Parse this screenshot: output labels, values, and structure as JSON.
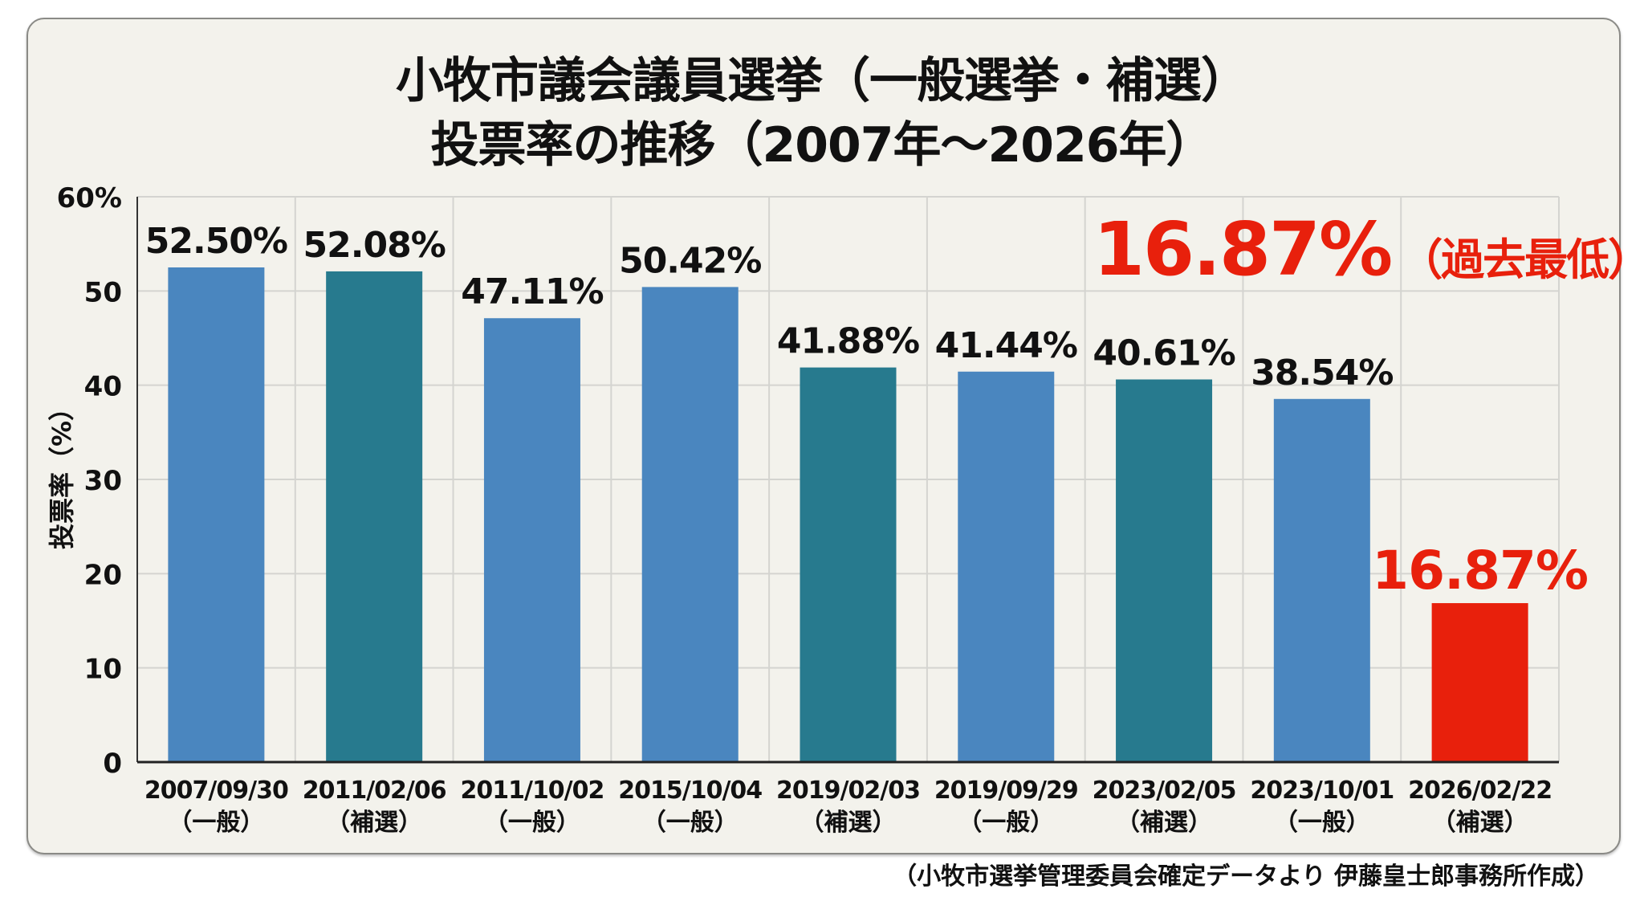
{
  "chart_data": {
    "type": "bar",
    "title_line1": "小牧市議会議員選挙（一般選挙・補選）",
    "title_line2": "投票率の推移（2007年〜2026年）",
    "ylabel": "投票率（%）",
    "xlabel": "",
    "ylim": [
      0,
      60
    ],
    "yticks": [
      "0",
      "10",
      "20",
      "30",
      "40",
      "50",
      "60%"
    ],
    "grid": true,
    "categories": [
      {
        "date": "2007/09/30",
        "type": "（一般）"
      },
      {
        "date": "2011/02/06",
        "type": "（補選）"
      },
      {
        "date": "2011/10/02",
        "type": "（一般）"
      },
      {
        "date": "2015/10/04",
        "type": "（一般）"
      },
      {
        "date": "2019/02/03",
        "type": "（補選）"
      },
      {
        "date": "2019/09/29",
        "type": "（一般）"
      },
      {
        "date": "2023/02/05",
        "type": "（補選）"
      },
      {
        "date": "2023/10/01",
        "type": "（一般）"
      },
      {
        "date": "2026/02/22",
        "type": "（補選）"
      }
    ],
    "values": [
      52.5,
      52.08,
      47.11,
      50.42,
      41.88,
      41.44,
      40.61,
      38.54,
      16.87
    ],
    "labels": [
      "52.50%",
      "52.08%",
      "47.11%",
      "50.42%",
      "41.88%",
      "41.44%",
      "40.61%",
      "38.54%",
      "16.87%"
    ],
    "annotation": {
      "value": "16.87%",
      "note": "（過去最低）"
    }
  },
  "colors": {
    "general": "#4a86bf",
    "by_election": "#277a8e",
    "latest": "#e8200c",
    "text": "#111111"
  },
  "source": "（小牧市選挙管理委員会確定データより 伊藤皇士郎事務所作成）"
}
